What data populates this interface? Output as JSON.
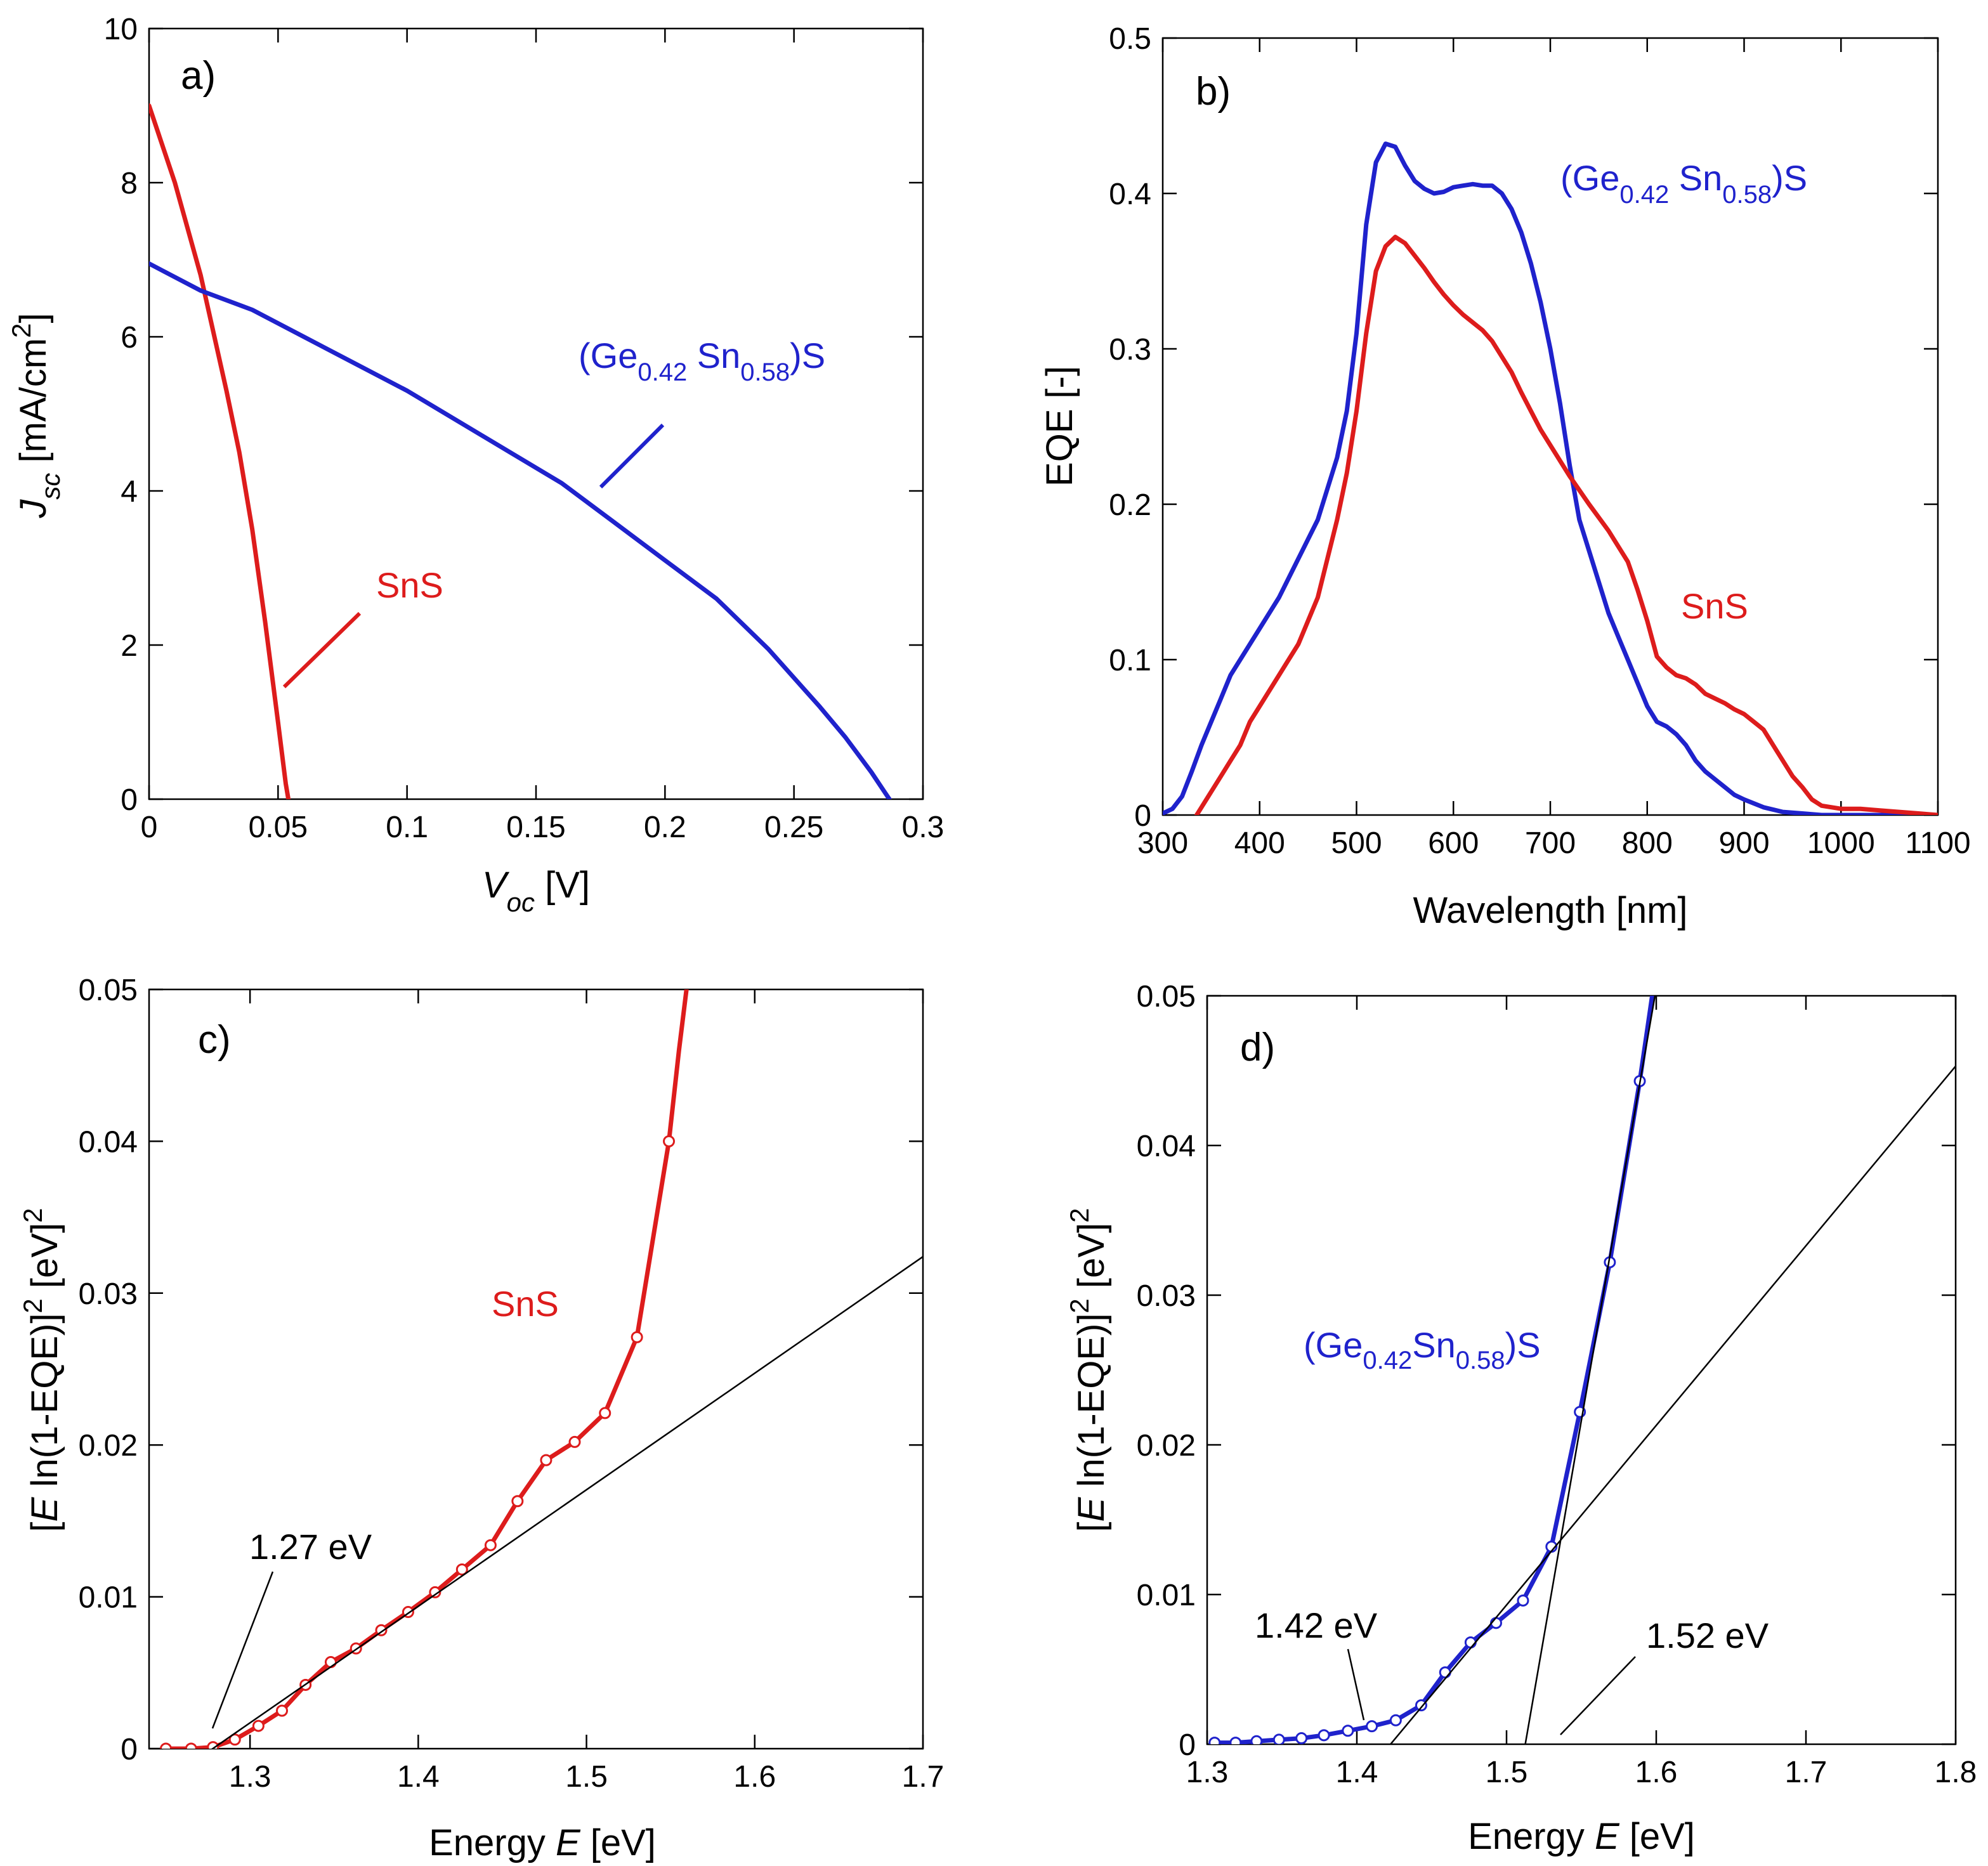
{
  "colors": {
    "red": "#dd1c1c",
    "blue": "#1f22cc",
    "black": "#000000"
  },
  "chart_data": [
    {
      "type": "line",
      "panel_label": "a)",
      "xlabel_italic": "V",
      "xlabel_sub": "oc",
      "xlabel_rest": " [V]",
      "ylabel_italic": "J",
      "ylabel_sub": "sc",
      "ylabel_rest": " [mA/cm",
      "ylabel_sup": "2",
      "ylabel_end": "]",
      "xlim": [
        0,
        0.3
      ],
      "ylim": [
        0,
        10
      ],
      "xticks": [
        0,
        0.05,
        0.1,
        0.15,
        0.2,
        0.25,
        0.3
      ],
      "xtick_labels": [
        "0",
        "0.05",
        "0.1",
        "0.15",
        "0.2",
        "0.25",
        "0.3"
      ],
      "yticks": [
        0,
        2,
        4,
        6,
        8,
        10
      ],
      "ytick_labels": [
        "0",
        "2",
        "4",
        "6",
        "8",
        "10"
      ],
      "series": [
        {
          "name": "SnS",
          "color": "#dd1c1c",
          "x": [
            0,
            0.01,
            0.02,
            0.03,
            0.035,
            0.04,
            0.045,
            0.05,
            0.053,
            0.054
          ],
          "y": [
            9.0,
            8.0,
            6.8,
            5.3,
            4.5,
            3.5,
            2.3,
            1.0,
            0.2,
            0
          ]
        },
        {
          "name": "(Ge0.42 Sn0.58)S",
          "color": "#1f22cc",
          "x": [
            0,
            0.02,
            0.04,
            0.06,
            0.08,
            0.1,
            0.12,
            0.14,
            0.16,
            0.18,
            0.2,
            0.22,
            0.24,
            0.26,
            0.27,
            0.28,
            0.287
          ],
          "y": [
            6.95,
            6.6,
            6.35,
            6.0,
            5.65,
            5.3,
            4.9,
            4.5,
            4.1,
            3.6,
            3.1,
            2.6,
            1.95,
            1.2,
            0.8,
            0.35,
            0
          ]
        }
      ],
      "annotations": [
        {
          "text": "SnS",
          "color": "#dd1c1c"
        },
        {
          "text_main": "(Ge",
          "sub1": "0.42",
          "mid": " Sn",
          "sub2": "0.58",
          "end": ")S",
          "color": "#1f22cc"
        }
      ]
    },
    {
      "type": "line",
      "panel_label": "b)",
      "xlabel": "Wavelength [nm]",
      "ylabel": "EQE [-]",
      "xlim": [
        300,
        1100
      ],
      "ylim": [
        0,
        0.5
      ],
      "xticks": [
        300,
        400,
        500,
        600,
        700,
        800,
        900,
        1000,
        1100
      ],
      "xtick_labels": [
        "300",
        "400",
        "500",
        "600",
        "700",
        "800",
        "900",
        "1000",
        "1100"
      ],
      "yticks": [
        0,
        0.1,
        0.2,
        0.3,
        0.4,
        0.5
      ],
      "ytick_labels": [
        "0",
        "0.1",
        "0.2",
        "0.3",
        "0.4",
        "0.5"
      ],
      "series": [
        {
          "name": "(Ge0.42 Sn0.58)S",
          "color": "#1f22cc",
          "x": [
            300,
            310,
            320,
            330,
            340,
            350,
            360,
            370,
            380,
            390,
            400,
            420,
            440,
            460,
            480,
            490,
            500,
            510,
            520,
            530,
            540,
            550,
            560,
            570,
            580,
            590,
            600,
            610,
            620,
            630,
            640,
            650,
            660,
            670,
            680,
            690,
            700,
            710,
            720,
            730,
            740,
            750,
            760,
            770,
            780,
            790,
            800,
            810,
            820,
            830,
            840,
            850,
            860,
            870,
            880,
            890,
            900,
            920,
            940,
            960,
            980,
            1000,
            1100
          ],
          "y": [
            0.001,
            0.004,
            0.012,
            0.028,
            0.045,
            0.06,
            0.075,
            0.09,
            0.1,
            0.11,
            0.12,
            0.14,
            0.165,
            0.19,
            0.23,
            0.26,
            0.31,
            0.38,
            0.42,
            0.432,
            0.43,
            0.418,
            0.408,
            0.403,
            0.4,
            0.401,
            0.404,
            0.405,
            0.406,
            0.405,
            0.405,
            0.4,
            0.39,
            0.375,
            0.355,
            0.33,
            0.3,
            0.265,
            0.225,
            0.19,
            0.17,
            0.15,
            0.13,
            0.115,
            0.1,
            0.085,
            0.07,
            0.06,
            0.057,
            0.052,
            0.045,
            0.035,
            0.028,
            0.023,
            0.018,
            0.013,
            0.01,
            0.005,
            0.002,
            0.001,
            0,
            0,
            0
          ]
        },
        {
          "name": "SnS",
          "color": "#dd1c1c",
          "x": [
            335,
            340,
            350,
            360,
            370,
            380,
            390,
            400,
            420,
            440,
            460,
            480,
            490,
            500,
            510,
            520,
            530,
            540,
            550,
            560,
            570,
            580,
            590,
            600,
            610,
            620,
            630,
            640,
            650,
            660,
            670,
            680,
            690,
            700,
            710,
            720,
            740,
            760,
            780,
            790,
            800,
            810,
            820,
            830,
            840,
            850,
            860,
            870,
            880,
            890,
            900,
            910,
            920,
            930,
            940,
            950,
            960,
            970,
            980,
            1000,
            1020,
            1040,
            1060,
            1080,
            1100
          ],
          "y": [
            0,
            0.005,
            0.015,
            0.025,
            0.035,
            0.045,
            0.06,
            0.07,
            0.09,
            0.11,
            0.14,
            0.19,
            0.22,
            0.26,
            0.31,
            0.35,
            0.366,
            0.372,
            0.368,
            0.36,
            0.352,
            0.343,
            0.335,
            0.328,
            0.322,
            0.317,
            0.312,
            0.305,
            0.295,
            0.285,
            0.272,
            0.26,
            0.248,
            0.238,
            0.228,
            0.218,
            0.2,
            0.183,
            0.163,
            0.145,
            0.125,
            0.102,
            0.095,
            0.09,
            0.088,
            0.084,
            0.078,
            0.075,
            0.072,
            0.068,
            0.065,
            0.06,
            0.055,
            0.045,
            0.035,
            0.025,
            0.018,
            0.01,
            0.006,
            0.004,
            0.004,
            0.003,
            0.002,
            0.001,
            0
          ]
        }
      ],
      "annotations": [
        {
          "text": "SnS",
          "color": "#dd1c1c"
        },
        {
          "text_main": "(Ge",
          "sub1": "0.42",
          "mid": " Sn",
          "sub2": "0.58",
          "end": ")S",
          "color": "#1f22cc"
        }
      ]
    },
    {
      "type": "line",
      "panel_label": "c)",
      "xlabel_pre": "Energy ",
      "xlabel_italic": "E",
      "xlabel_rest": " [eV]",
      "ylabel_pre": "[",
      "ylabel_italic": "E",
      "ylabel_mid": " ln(1-EQE)]",
      "ylabel_sup1": "2",
      "ylabel_mid2": " [eV]",
      "ylabel_sup2": "2",
      "xlim": [
        1.24,
        1.7
      ],
      "ylim": [
        0,
        0.05
      ],
      "xticks": [
        1.3,
        1.4,
        1.5,
        1.6,
        1.7
      ],
      "xtick_labels": [
        "1.3",
        "1.4",
        "1.5",
        "1.6",
        "1.7"
      ],
      "yticks": [
        0,
        0.01,
        0.02,
        0.03,
        0.04,
        0.05
      ],
      "ytick_labels": [
        "0",
        "0.01",
        "0.02",
        "0.03",
        "0.04",
        "0.05"
      ],
      "series": [
        {
          "name": "SnS",
          "color": "#dd1c1c",
          "markers": true,
          "x": [
            1.25,
            1.265,
            1.278,
            1.291,
            1.305,
            1.319,
            1.333,
            1.348,
            1.363,
            1.378,
            1.394,
            1.41,
            1.426,
            1.443,
            1.459,
            1.476,
            1.493,
            1.511,
            1.53,
            1.549
          ],
          "y": [
            0,
            0,
            0.0001,
            0.0006,
            0.0015,
            0.0025,
            0.0042,
            0.0057,
            0.0066,
            0.0078,
            0.009,
            0.0103,
            0.0118,
            0.0134,
            0.0163,
            0.019,
            0.0202,
            0.0221,
            0.0271,
            0.04
          ],
          "tail_x": [
            1.549,
            1.555,
            1.56
          ],
          "tail_y": [
            0.04,
            0.046,
            0.0505
          ]
        },
        {
          "name": "fit",
          "color": "#000000",
          "x": [
            1.27,
            1.7
          ],
          "y": [
            -0.0006,
            0.0324
          ]
        }
      ],
      "annotations": [
        {
          "text": "SnS",
          "color": "#dd1c1c"
        },
        {
          "text": "1.27 eV",
          "color": "#000000"
        }
      ]
    },
    {
      "type": "line",
      "panel_label": "d)",
      "xlabel_pre": "Energy ",
      "xlabel_italic": "E",
      "xlabel_rest": " [eV]",
      "ylabel_pre": "[",
      "ylabel_italic": "E",
      "ylabel_mid": " ln(1-EQE)]",
      "ylabel_sup1": "2",
      "ylabel_mid2": " [eV]",
      "ylabel_sup2": "2",
      "xlim": [
        1.3,
        1.8
      ],
      "ylim": [
        0,
        0.05
      ],
      "xticks": [
        1.3,
        1.4,
        1.5,
        1.6,
        1.7,
        1.8
      ],
      "xtick_labels": [
        "1.3",
        "1.4",
        "1.5",
        "1.6",
        "1.7",
        "1.8"
      ],
      "yticks": [
        0,
        0.01,
        0.02,
        0.03,
        0.04,
        0.05
      ],
      "ytick_labels": [
        "0",
        "0.01",
        "0.02",
        "0.03",
        "0.04",
        "0.05"
      ],
      "series": [
        {
          "name": "(Ge0.42Sn0.58)S",
          "color": "#1f22cc",
          "markers": true,
          "x": [
            1.305,
            1.319,
            1.333,
            1.348,
            1.363,
            1.378,
            1.394,
            1.41,
            1.426,
            1.443,
            1.459,
            1.476,
            1.493,
            1.511,
            1.53,
            1.549,
            1.569,
            1.589
          ],
          "y": [
            0.0001,
            0.0001,
            0.0002,
            0.0003,
            0.0004,
            0.0006,
            0.0009,
            0.0012,
            0.0016,
            0.0026,
            0.0048,
            0.0068,
            0.0081,
            0.0096,
            0.0132,
            0.0222,
            0.0322,
            0.0443
          ],
          "tail_x": [
            1.589,
            1.598
          ],
          "tail_y": [
            0.0443,
            0.0505
          ]
        },
        {
          "name": "fit1",
          "color": "#000000",
          "x": [
            1.42,
            1.8
          ],
          "y": [
            -0.0003,
            0.0453
          ]
        },
        {
          "name": "fit2",
          "color": "#000000",
          "x": [
            1.512,
            1.6
          ],
          "y": [
            -0.0003,
            0.0505
          ]
        }
      ],
      "annotations": [
        {
          "text_main": "(Ge",
          "sub1": "0.42",
          "mid": "Sn",
          "sub2": "0.58",
          "end": ")S",
          "color": "#1f22cc"
        },
        {
          "text": "1.42 eV",
          "color": "#000000"
        },
        {
          "text": "1.52 eV",
          "color": "#000000"
        }
      ]
    }
  ]
}
